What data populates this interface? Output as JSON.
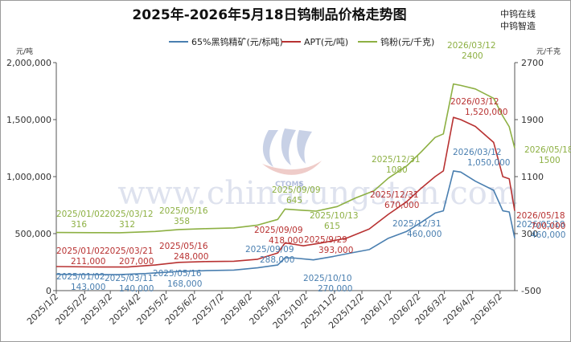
{
  "brand": {
    "line1": "中钨在线",
    "line2": "中钨智造"
  },
  "watermark": {
    "text": "www.chinatungsten.com",
    "logo_text": "CTOMS"
  },
  "chart_data": {
    "type": "line",
    "title": "2025年-2026年5月18日钨制品价格走势图",
    "y_left": {
      "unit": "元/吨",
      "range": [
        0,
        2000000
      ],
      "ticks": [
        "0",
        "500,000",
        "1,000,000",
        "1,500,000",
        "2,000,000"
      ]
    },
    "y_right": {
      "unit": "元/千克",
      "range": [
        -500,
        2700
      ],
      "ticks": [
        "-500",
        "300",
        "1100",
        "1900",
        "2700"
      ]
    },
    "x_ticks": [
      "2025/1/2",
      "2025/2/2",
      "2025/3/2",
      "2025/4/2",
      "2025/5/2",
      "2025/6/2",
      "2025/7/2",
      "2025/8/2",
      "2025/9/2",
      "2025/10/2",
      "2025/11/2",
      "2025/12/2",
      "2026/1/2",
      "2026/2/2",
      "2026/3/2",
      "2026/4/2",
      "2026/5/2"
    ],
    "grid": false,
    "legend_position": "top",
    "series": [
      {
        "name": "65%黑钨精矿(元/标吨)",
        "axis": "left",
        "color": "#4a7fb0",
        "points": [
          [
            "2025-01-02",
            143000
          ],
          [
            "2025-02-01",
            141000
          ],
          [
            "2025-03-11",
            140000
          ],
          [
            "2025-04-10",
            150000
          ],
          [
            "2025-05-16",
            168000
          ],
          [
            "2025-06-15",
            175000
          ],
          [
            "2025-07-15",
            180000
          ],
          [
            "2025-08-10",
            200000
          ],
          [
            "2025-09-01",
            225000
          ],
          [
            "2025-09-09",
            288000
          ],
          [
            "2025-09-20",
            285000
          ],
          [
            "2025-10-10",
            270000
          ],
          [
            "2025-11-01",
            300000
          ],
          [
            "2025-11-20",
            330000
          ],
          [
            "2025-12-10",
            360000
          ],
          [
            "2025-12-31",
            460000
          ],
          [
            "2026-01-20",
            520000
          ],
          [
            "2026-02-05",
            600000
          ],
          [
            "2026-02-20",
            680000
          ],
          [
            "2026-03-01",
            700000
          ],
          [
            "2026-03-12",
            1050000
          ],
          [
            "2026-03-20",
            1040000
          ],
          [
            "2026-04-05",
            960000
          ],
          [
            "2026-04-25",
            880000
          ],
          [
            "2026-05-05",
            700000
          ],
          [
            "2026-05-12",
            690000
          ],
          [
            "2026-05-18",
            460000
          ]
        ],
        "annotations": [
          {
            "date": "2025/01/02",
            "value": "143,000"
          },
          {
            "date": "2025/03/11",
            "value": "140,000"
          },
          {
            "date": "2025/05/16",
            "value": "168,000"
          },
          {
            "date": "2025/09/09",
            "value": "288,000"
          },
          {
            "date": "2025/10/10",
            "value": "270,000"
          },
          {
            "date": "2025/12/31",
            "value": "460,000"
          },
          {
            "date": "2026/03/12",
            "value": "1,050,000"
          },
          {
            "date": "2026/05/18",
            "value": "460,000"
          }
        ]
      },
      {
        "name": "APT(元/吨)",
        "axis": "left",
        "color": "#b83232",
        "points": [
          [
            "2025-01-02",
            211000
          ],
          [
            "2025-02-10",
            208000
          ],
          [
            "2025-03-21",
            207000
          ],
          [
            "2025-04-20",
            225000
          ],
          [
            "2025-05-16",
            248000
          ],
          [
            "2025-06-15",
            255000
          ],
          [
            "2025-07-15",
            258000
          ],
          [
            "2025-08-10",
            275000
          ],
          [
            "2025-09-01",
            330000
          ],
          [
            "2025-09-09",
            418000
          ],
          [
            "2025-09-20",
            405000
          ],
          [
            "2025-09-29",
            393000
          ],
          [
            "2025-10-20",
            420000
          ],
          [
            "2025-11-15",
            460000
          ],
          [
            "2025-12-10",
            540000
          ],
          [
            "2025-12-31",
            670000
          ],
          [
            "2026-01-20",
            780000
          ],
          [
            "2026-02-05",
            900000
          ],
          [
            "2026-02-20",
            1000000
          ],
          [
            "2026-03-01",
            1050000
          ],
          [
            "2026-03-12",
            1520000
          ],
          [
            "2026-03-20",
            1500000
          ],
          [
            "2026-04-05",
            1440000
          ],
          [
            "2026-04-25",
            1300000
          ],
          [
            "2026-05-05",
            1000000
          ],
          [
            "2026-05-12",
            980000
          ],
          [
            "2026-05-18",
            700000
          ]
        ],
        "annotations": [
          {
            "date": "2025/01/02",
            "value": "211,000"
          },
          {
            "date": "2025/03/21",
            "value": "207,000"
          },
          {
            "date": "2025/05/16",
            "value": "248,000"
          },
          {
            "date": "2025/09/09",
            "value": "418,000"
          },
          {
            "date": "2025/9/29",
            "value": "393,000"
          },
          {
            "date": "2025/12/31",
            "value": "670,000"
          },
          {
            "date": "2026/03/12",
            "value": "1,520,000"
          },
          {
            "date": "2026/05/18",
            "value": "700,000"
          }
        ]
      },
      {
        "name": "钨粉(元/千克)",
        "axis": "right",
        "color": "#8db043",
        "points": [
          [
            "2025-01-02",
            316
          ],
          [
            "2025-02-10",
            314
          ],
          [
            "2025-03-12",
            312
          ],
          [
            "2025-04-20",
            330
          ],
          [
            "2025-05-16",
            358
          ],
          [
            "2025-06-15",
            370
          ],
          [
            "2025-07-15",
            380
          ],
          [
            "2025-08-10",
            420
          ],
          [
            "2025-09-01",
            500
          ],
          [
            "2025-09-09",
            645
          ],
          [
            "2025-09-25",
            630
          ],
          [
            "2025-10-13",
            615
          ],
          [
            "2025-11-05",
            680
          ],
          [
            "2025-11-25",
            800
          ],
          [
            "2025-12-15",
            900
          ],
          [
            "2025-12-31",
            1080
          ],
          [
            "2026-01-20",
            1250
          ],
          [
            "2026-02-05",
            1450
          ],
          [
            "2026-02-20",
            1650
          ],
          [
            "2026-03-01",
            1700
          ],
          [
            "2026-03-12",
            2400
          ],
          [
            "2026-03-20",
            2380
          ],
          [
            "2026-04-05",
            2330
          ],
          [
            "2026-04-25",
            2200
          ],
          [
            "2026-05-05",
            1950
          ],
          [
            "2026-05-12",
            1800
          ],
          [
            "2026-05-18",
            1500
          ]
        ],
        "annotations": [
          {
            "date": "2025/01/02",
            "value": "316"
          },
          {
            "date": "2025/03/12",
            "value": "312"
          },
          {
            "date": "2025/05/16",
            "value": "358"
          },
          {
            "date": "2025/09/09",
            "value": "645"
          },
          {
            "date": "2025/10/13",
            "value": "615"
          },
          {
            "date": "2025/12/31",
            "value": "1080"
          },
          {
            "date": "2026/03/12",
            "value": "2400"
          },
          {
            "date": "2026/05/18",
            "value": "1500"
          }
        ]
      }
    ]
  }
}
